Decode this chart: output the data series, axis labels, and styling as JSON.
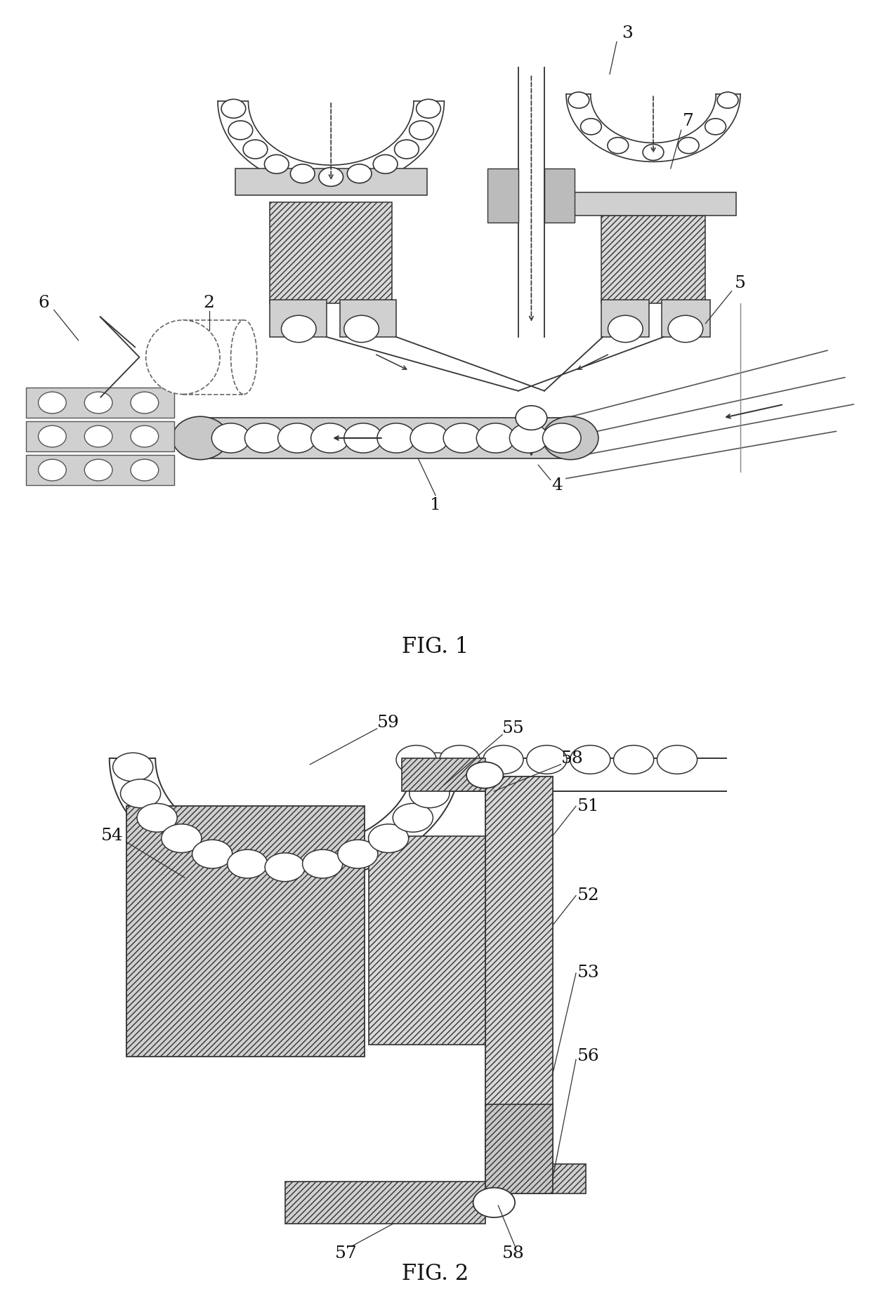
{
  "fig_title1": "FIG. 1",
  "fig_title2": "FIG. 2",
  "bg_color": "#ffffff",
  "lc": "#1a1a1a",
  "hc": "#555555",
  "lw_main": 1.2,
  "label_fs": 18,
  "title_fs": 22
}
